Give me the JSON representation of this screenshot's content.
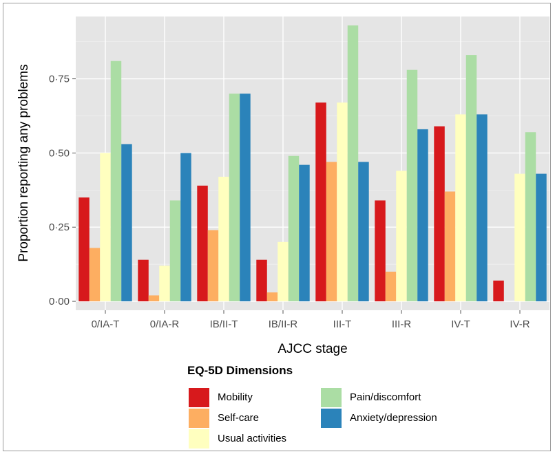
{
  "chart_data": {
    "type": "bar",
    "xlabel": "AJCC stage",
    "ylabel": "Proportion reporting any problems",
    "ylim": [
      -0.03,
      0.96
    ],
    "yticks": [
      0.0,
      0.25,
      0.5,
      0.75
    ],
    "ytick_labels": [
      "0·00",
      "0·25",
      "0·50",
      "0·75"
    ],
    "grid": true,
    "legend_position": "bottom",
    "categories": [
      "0/IA-T",
      "0/IA-R",
      "IB/II-T",
      "IB/II-R",
      "III-T",
      "III-R",
      "IV-T",
      "IV-R"
    ],
    "legend": {
      "title": "EQ-5D Dimensions"
    },
    "series": [
      {
        "name": "Mobility",
        "color": "#d7191c",
        "values": [
          0.35,
          0.14,
          0.39,
          0.14,
          0.67,
          0.34,
          0.59,
          0.07
        ]
      },
      {
        "name": "Self-care",
        "color": "#fdae61",
        "values": [
          0.18,
          0.02,
          0.24,
          0.03,
          0.47,
          0.1,
          0.37,
          0.0
        ]
      },
      {
        "name": "Usual activities",
        "color": "#ffffbf",
        "values": [
          0.5,
          0.12,
          0.42,
          0.2,
          0.67,
          0.44,
          0.63,
          0.43
        ]
      },
      {
        "name": "Pain/discomfort",
        "color": "#abdda4",
        "values": [
          0.81,
          0.34,
          0.7,
          0.49,
          0.93,
          0.78,
          0.83,
          0.57
        ]
      },
      {
        "name": "Anxiety/depression",
        "color": "#2b83ba",
        "values": [
          0.53,
          0.5,
          0.7,
          0.46,
          0.47,
          0.58,
          0.63,
          0.43
        ]
      }
    ]
  }
}
